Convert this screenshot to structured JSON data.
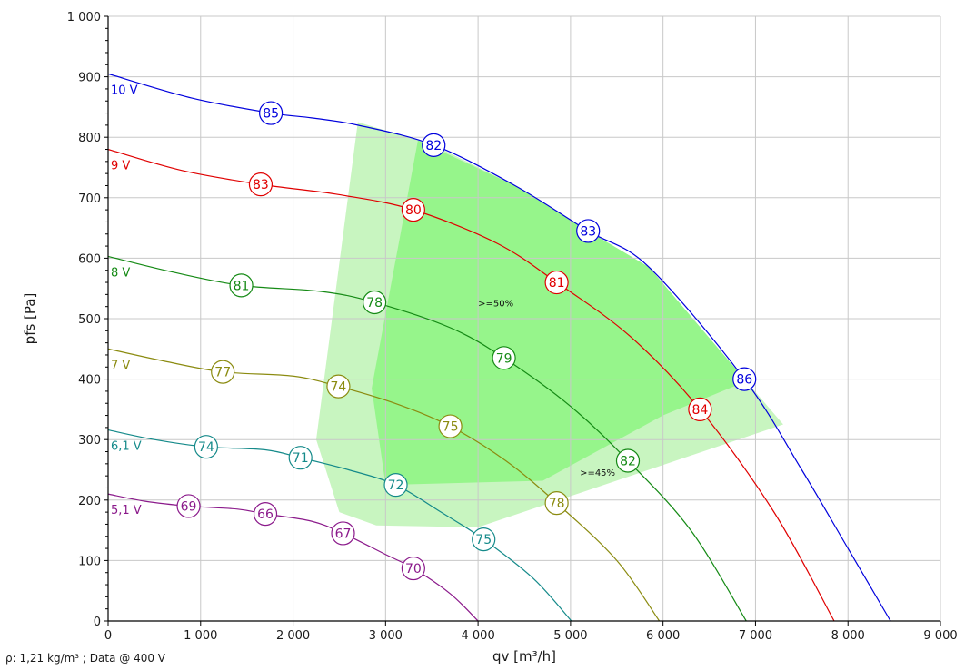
{
  "footnote": "ρ: 1,21 kg/m³ ; Data @ 400 V",
  "chart_data": {
    "type": "line",
    "xlabel": "qv [m³/h]",
    "ylabel": "pfs [Pa]",
    "xlim": [
      0,
      9000
    ],
    "ylim": [
      0,
      1000
    ],
    "xticks": [
      0,
      1000,
      2000,
      3000,
      4000,
      5000,
      6000,
      7000,
      8000,
      9000
    ],
    "xtick_labels": [
      "0",
      "1 000",
      "2 000",
      "3 000",
      "4 000",
      "5 000",
      "6 000",
      "7 000",
      "8 000",
      "9 000"
    ],
    "yticks": [
      0,
      100,
      200,
      300,
      400,
      500,
      600,
      700,
      800,
      900,
      1000
    ],
    "ytick_labels": [
      "0",
      "100",
      "200",
      "300",
      "400",
      "500",
      "600",
      "700",
      "800",
      "900",
      "1 000"
    ],
    "grid": true,
    "series": [
      {
        "name": "10 V",
        "color": "#0000dd",
        "x": [
          0,
          900,
          1760,
          2200,
          2700,
          3520,
          4400,
          5190,
          5850,
          6880,
          7500,
          8000,
          8460
        ],
        "y": [
          905,
          865,
          840,
          832,
          820,
          787,
          720,
          645,
          585,
          400,
          250,
          120,
          0
        ],
        "markers": [
          {
            "x": 1760,
            "y": 840,
            "label": "85"
          },
          {
            "x": 3520,
            "y": 787,
            "label": "82"
          },
          {
            "x": 5190,
            "y": 645,
            "label": "83"
          },
          {
            "x": 6880,
            "y": 400,
            "label": "86"
          }
        ]
      },
      {
        "name": "9 V",
        "color": "#e00000",
        "x": [
          0,
          800,
          1650,
          2500,
          3300,
          4200,
          4850,
          5650,
          6400,
          7200,
          7850
        ],
        "y": [
          780,
          745,
          722,
          705,
          680,
          625,
          560,
          470,
          350,
          180,
          0
        ],
        "markers": [
          {
            "x": 1650,
            "y": 722,
            "label": "83"
          },
          {
            "x": 3300,
            "y": 680,
            "label": "80"
          },
          {
            "x": 4850,
            "y": 560,
            "label": "81"
          },
          {
            "x": 6400,
            "y": 350,
            "label": "84"
          }
        ]
      },
      {
        "name": "8 V",
        "color": "#158a15",
        "x": [
          0,
          700,
          1440,
          2300,
          2880,
          3700,
          4280,
          5000,
          5620,
          6300,
          6900
        ],
        "y": [
          603,
          577,
          555,
          545,
          527,
          485,
          435,
          355,
          265,
          150,
          0
        ],
        "markers": [
          {
            "x": 1440,
            "y": 555,
            "label": "81"
          },
          {
            "x": 2880,
            "y": 527,
            "label": "78"
          },
          {
            "x": 4280,
            "y": 435,
            "label": "79"
          },
          {
            "x": 5620,
            "y": 265,
            "label": "82"
          }
        ]
      },
      {
        "name": "7 V",
        "color": "#8b8b10",
        "x": [
          0,
          600,
          1240,
          2000,
          2490,
          3100,
          3700,
          4300,
          4850,
          5500,
          5960
        ],
        "y": [
          450,
          430,
          412,
          405,
          388,
          360,
          322,
          265,
          195,
          100,
          0
        ],
        "markers": [
          {
            "x": 1240,
            "y": 412,
            "label": "77"
          },
          {
            "x": 2490,
            "y": 388,
            "label": "74"
          },
          {
            "x": 3700,
            "y": 322,
            "label": "75"
          },
          {
            "x": 4850,
            "y": 195,
            "label": "78"
          }
        ]
      },
      {
        "name": "6,1 V",
        "color": "#158a8a",
        "x": [
          0,
          500,
          1060,
          1700,
          2080,
          2600,
          3110,
          3600,
          4060,
          4600,
          5010
        ],
        "y": [
          316,
          300,
          288,
          283,
          270,
          250,
          225,
          180,
          135,
          70,
          0
        ],
        "markers": [
          {
            "x": 1060,
            "y": 288,
            "label": "74"
          },
          {
            "x": 2080,
            "y": 270,
            "label": "71"
          },
          {
            "x": 3110,
            "y": 225,
            "label": "72"
          },
          {
            "x": 4060,
            "y": 135,
            "label": "75"
          }
        ]
      },
      {
        "name": "5,1 V",
        "color": "#8b1a8b",
        "x": [
          0,
          400,
          870,
          1400,
          1700,
          2200,
          2540,
          3000,
          3300,
          3700,
          4000
        ],
        "y": [
          210,
          198,
          190,
          185,
          177,
          165,
          145,
          110,
          87,
          45,
          0
        ],
        "markers": [
          {
            "x": 870,
            "y": 190,
            "label": "69"
          },
          {
            "x": 1700,
            "y": 177,
            "label": "66"
          },
          {
            "x": 2540,
            "y": 145,
            "label": "67"
          },
          {
            "x": 3300,
            "y": 87,
            "label": "70"
          }
        ]
      }
    ],
    "zones": [
      {
        "label": ">=45%",
        "color": "#c8f5c0",
        "label_x": 5100,
        "label_y": 240,
        "polygon": [
          [
            2700,
            825
          ],
          [
            3520,
            787
          ],
          [
            4400,
            720
          ],
          [
            5190,
            645
          ],
          [
            5850,
            585
          ],
          [
            6880,
            400
          ],
          [
            7300,
            325
          ],
          [
            4000,
            155
          ],
          [
            2900,
            158
          ],
          [
            2500,
            180
          ],
          [
            2250,
            300
          ]
        ]
      },
      {
        "label": ">=50%",
        "color": "#96f58b",
        "label_x": 4000,
        "label_y": 520,
        "polygon": [
          [
            3350,
            795
          ],
          [
            4400,
            720
          ],
          [
            5190,
            645
          ],
          [
            5850,
            585
          ],
          [
            6880,
            400
          ],
          [
            6800,
            390
          ],
          [
            6000,
            340
          ],
          [
            4700,
            232
          ],
          [
            3000,
            225
          ],
          [
            2850,
            385
          ]
        ]
      }
    ]
  }
}
